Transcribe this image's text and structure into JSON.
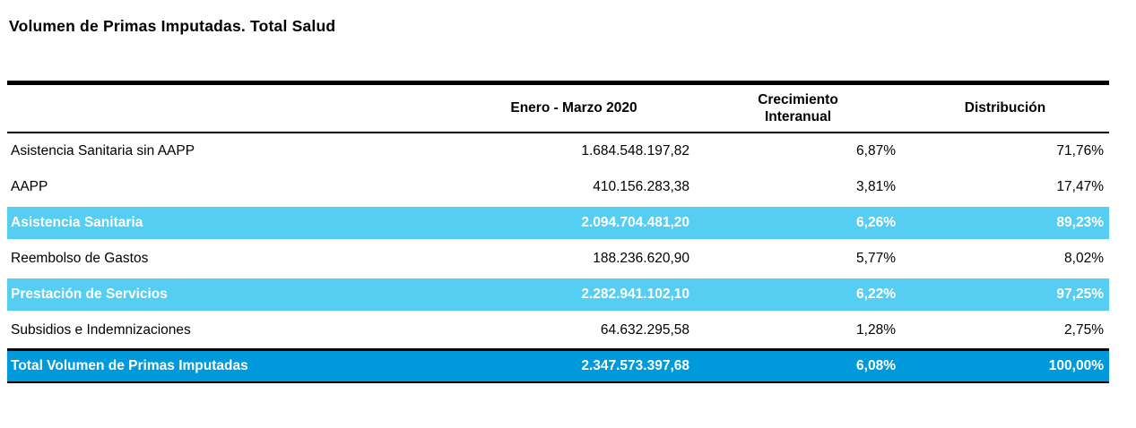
{
  "title": "Volumen de Primas Imputadas. Total Salud",
  "table": {
    "headers": {
      "label": "",
      "period": "Enero - Marzo 2020",
      "growth": "Crecimiento Interanual",
      "distribution": "Distribución"
    },
    "rows": [
      {
        "label": "Asistencia Sanitaria sin AAPP",
        "amount": "1.684.548.197,82",
        "growth": "6,87%",
        "distribution": "71,76%",
        "emphasis": "none"
      },
      {
        "label": "AAPP",
        "amount": "410.156.283,38",
        "growth": "3,81%",
        "distribution": "17,47%",
        "emphasis": "none"
      },
      {
        "label": "Asistencia Sanitaria",
        "amount": "2.094.704.481,20",
        "growth": "6,26%",
        "distribution": "89,23%",
        "emphasis": "subtotal"
      },
      {
        "label": "Reembolso de Gastos",
        "amount": "188.236.620,90",
        "growth": "5,77%",
        "distribution": "8,02%",
        "emphasis": "none"
      },
      {
        "label": "Prestación de Servicios",
        "amount": "2.282.941.102,10",
        "growth": "6,22%",
        "distribution": "97,25%",
        "emphasis": "subtotal"
      },
      {
        "label": "Subsidios e Indemnizaciones",
        "amount": "64.632.295,58",
        "growth": "1,28%",
        "distribution": "2,75%",
        "emphasis": "none"
      },
      {
        "label": "Total Volumen de Primas Imputadas",
        "amount": "2.347.573.397,68",
        "growth": "6,08%",
        "distribution": "100,00%",
        "emphasis": "total"
      }
    ]
  },
  "colors": {
    "subtotal-row-bg": "#55CEF1",
    "total-row-bg": "#0099DB",
    "emphasis-text": "#FFFFFF",
    "text": "#000000",
    "rule": "#000000"
  }
}
